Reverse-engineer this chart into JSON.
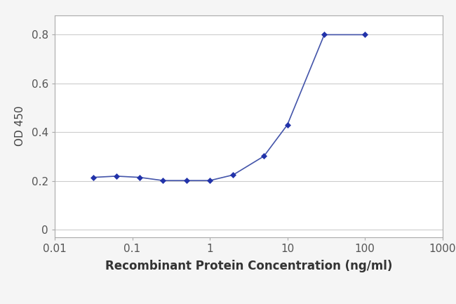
{
  "x_data": [
    0.03125,
    0.0625,
    0.125,
    0.25,
    0.5,
    1.0,
    2.0,
    5.0,
    10.0,
    30.0,
    100.0
  ],
  "y_data": [
    0.215,
    0.22,
    0.215,
    0.202,
    0.202,
    0.202,
    0.225,
    0.302,
    0.43,
    0.8,
    0.8
  ],
  "line_color": "#4455AA",
  "marker_color": "#2233AA",
  "xlabel": "Recombinant Protein Concentration (ng/ml)",
  "ylabel": "OD 450",
  "xlim_log": [
    0.01,
    1000
  ],
  "ylim": [
    -0.03,
    0.88
  ],
  "yticks": [
    0,
    0.2,
    0.4,
    0.6,
    0.8
  ],
  "xtick_positions": [
    0.01,
    0.1,
    1,
    10,
    100,
    1000
  ],
  "xtick_labels": [
    "0.01",
    "0.1",
    "1",
    "10",
    "100",
    "1000"
  ],
  "figure_bg_color": "#f5f5f5",
  "plot_bg_color": "#ffffff",
  "grid_color": "#cccccc",
  "xlabel_fontsize": 12,
  "ylabel_fontsize": 11,
  "tick_fontsize": 11,
  "spine_color": "#aaaaaa"
}
